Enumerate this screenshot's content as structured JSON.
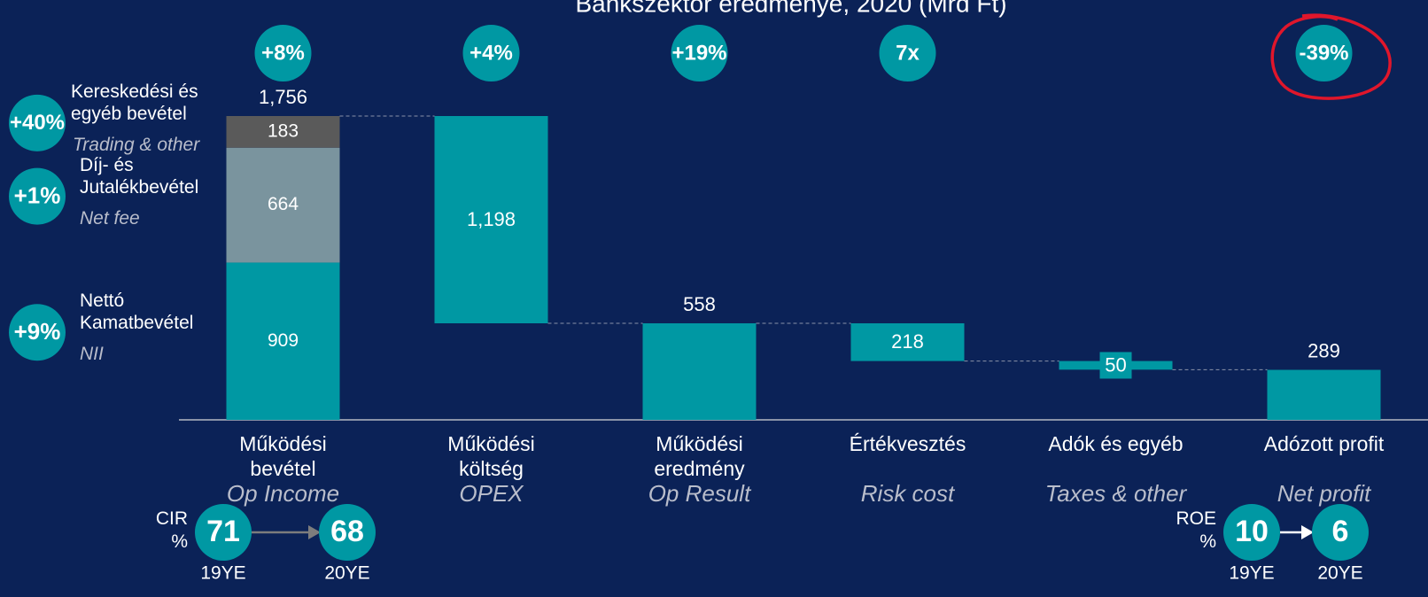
{
  "chart_data": {
    "type": "waterfall",
    "title": "Bankszektor eredménye, 2020 (Mrd Ft)",
    "categories": [
      "Működési bevétel",
      "Működési költség",
      "Működési eredmény",
      "Értékvesztés",
      "Adók és egyéb",
      "Adózott profit"
    ],
    "categories_en": [
      "Op Income",
      "OPEX",
      "Op Result",
      "Risk cost",
      "Taxes & other",
      "Net profit"
    ],
    "measure": [
      "total",
      "decrease",
      "total",
      "decrease",
      "decrease",
      "total"
    ],
    "values": [
      1756,
      1198,
      558,
      218,
      50,
      289
    ],
    "value_labels": [
      "1,756",
      "1,198",
      "558",
      "218",
      "50",
      "289"
    ],
    "changes": [
      "+8%",
      "+4%",
      "+19%",
      "7x",
      null,
      "-39%"
    ],
    "color": "#0098a3",
    "stack": [
      {
        "name": "Nettó Kamatbevétel",
        "name_en": "NII",
        "change": "+9%",
        "color": "#0098a3",
        "value": 909
      },
      {
        "name": "Díj- és Jutalékbevétel",
        "name_en": "Net fee",
        "change": "+1%",
        "color": "#7a949e",
        "value": 664
      },
      {
        "name": "Kereskedési és egyéb bevétel",
        "name_en": "Trading & other",
        "change": "+40%",
        "color": "#5a5a5a",
        "value": 183
      }
    ],
    "ylim": [
      0,
      1756
    ],
    "kpis": [
      {
        "label": "CIR %",
        "from": 71,
        "to": 68,
        "from_label": "19YE",
        "to_label": "20YE"
      },
      {
        "label": "ROE %",
        "from": 10,
        "to": 6,
        "from_label": "19YE",
        "to_label": "20YE"
      }
    ]
  }
}
